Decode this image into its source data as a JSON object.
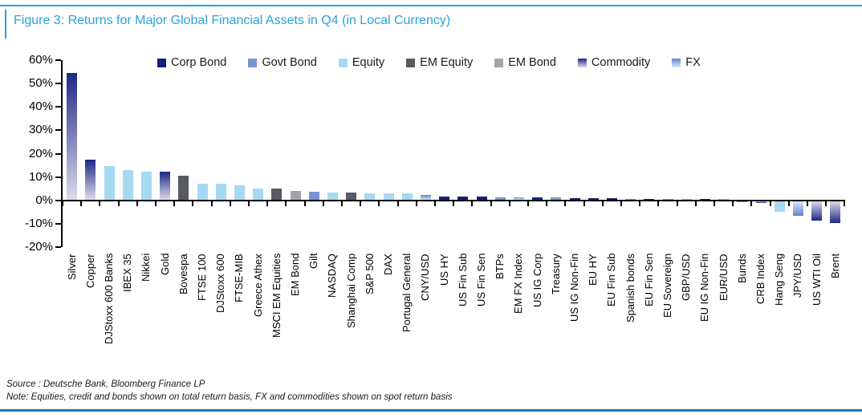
{
  "title": "Figure 3: Returns for Major Global Financial Assets in Q4 (in Local Currency)",
  "source_line": "Source : Deutsche Bank, Bloomberg Finance LP",
  "note_line": "Note: Equities, credit and bonds shown on total return basis, FX and commodities shown on spot return basis",
  "colors": {
    "title_accent": "#2aa1d8",
    "bottom_rule": "#1f78b6",
    "axis": "#000000",
    "corp_bond": "#141f7d",
    "govt_bond": "#7a93d2",
    "equity": "#a6d9f2",
    "em_equity": "#585b62",
    "em_bond": "#a2a4ac",
    "commodity_tip": "#1d2787",
    "commodity_base": "#dcdcea",
    "fx_tip": "#6084cd",
    "fx_base": "#dce9f7"
  },
  "legend": [
    {
      "label": "Corp Bond",
      "class": "corp_bond"
    },
    {
      "label": "Govt Bond",
      "class": "govt_bond"
    },
    {
      "label": "Equity",
      "class": "equity"
    },
    {
      "label": "EM Equity",
      "class": "em_equity"
    },
    {
      "label": "EM Bond",
      "class": "em_bond"
    },
    {
      "label": "Commodity",
      "class": "commodity"
    },
    {
      "label": "FX",
      "class": "fx"
    }
  ],
  "chart_data": {
    "type": "bar",
    "title": "Figure 3: Returns for Major Global Financial Assets in Q4 (in Local Currency)",
    "xlabel": "",
    "ylabel": "",
    "ylim": [
      -20,
      60
    ],
    "y_ticks": [
      60,
      50,
      40,
      30,
      20,
      10,
      0,
      -10,
      -20
    ],
    "y_tick_suffix": "%",
    "grid": false,
    "legend_position": "top",
    "categories": [
      "Silver",
      "Copper",
      "DJStoxx 600 Banks",
      "IBEX 35",
      "Nikkei",
      "Gold",
      "Bovespa",
      "FTSE 100",
      "DJStoxx 600",
      "FTSE-MIB",
      "Greece Athex",
      "MSCI EM Equities",
      "EM Bond",
      "Gilt",
      "NASDAQ",
      "Shanghai Comp",
      "S&P 500",
      "DAX",
      "Portugal General",
      "CNY/USD",
      "US HY",
      "US Fin Sub",
      "US Fin Sen",
      "BTPs",
      "EM FX Index",
      "US IG Corp",
      "Treasury",
      "US IG Non-Fin",
      "EU HY",
      "EU Fin Sub",
      "Spanish bonds",
      "EU Fin Sen",
      "EU Sovereign",
      "GBP/USD",
      "EU IG Non-Fin",
      "EUR/USD",
      "Bunds",
      "CRB Index",
      "Hang Seng",
      "JPY/USD",
      "US WTI Oil",
      "Brent"
    ],
    "values": [
      54,
      17,
      14.5,
      12.7,
      12,
      12,
      10.3,
      7,
      6.7,
      6.3,
      4.9,
      4.8,
      3.8,
      3.3,
      3.1,
      3,
      2.9,
      2.9,
      2.8,
      2,
      1.5,
      1.4,
      1.2,
      1.1,
      1,
      1,
      0.9,
      0.8,
      0.8,
      0.6,
      0.5,
      0.3,
      0.2,
      0.2,
      0.1,
      0.1,
      -0.1,
      -0.8,
      -4.5,
      -6,
      -8.3,
      -9.4
    ],
    "asset_classes": [
      "commodity",
      "commodity",
      "equity",
      "equity",
      "equity",
      "commodity",
      "em_equity",
      "equity",
      "equity",
      "equity",
      "equity",
      "em_equity",
      "em_bond",
      "govt_bond",
      "equity",
      "em_equity",
      "equity",
      "equity",
      "equity",
      "fx",
      "corp_bond",
      "corp_bond",
      "corp_bond",
      "govt_bond",
      "fx",
      "corp_bond",
      "govt_bond",
      "corp_bond",
      "corp_bond",
      "corp_bond",
      "govt_bond",
      "corp_bond",
      "govt_bond",
      "fx",
      "corp_bond",
      "fx",
      "govt_bond",
      "commodity",
      "equity",
      "fx",
      "commodity",
      "commodity"
    ]
  }
}
